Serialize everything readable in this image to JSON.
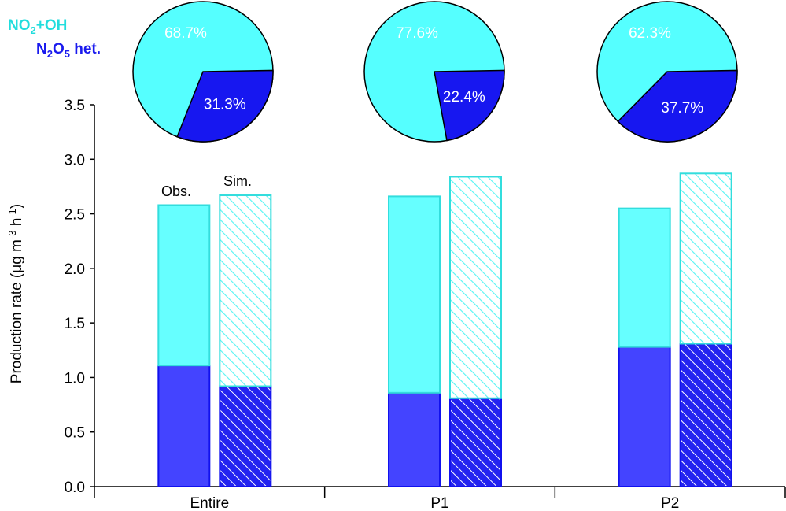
{
  "chart_data": {
    "type": "bar",
    "categories": [
      "Entire",
      "P1",
      "P2"
    ],
    "ylabel_main": "Production rate (μg m",
    "ylabel_sup1": "-3",
    "ylabel_mid": " h",
    "ylabel_sup2": "-1",
    "ylabel_end": ")",
    "ylim": [
      0,
      3.5
    ],
    "yticks": [
      "0.0",
      "0.5",
      "1.0",
      "1.5",
      "2.0",
      "2.5",
      "3.0",
      "3.5"
    ],
    "bar_labels": {
      "obs": "Obs.",
      "sim": "Sim."
    },
    "stacks": {
      "obs": {
        "n2o5_het": [
          1.11,
          0.86,
          1.28
        ],
        "no2_oh": [
          1.47,
          1.8,
          1.27
        ]
      },
      "sim": {
        "n2o5_het": [
          0.92,
          0.81,
          1.31
        ],
        "no2_oh": [
          1.75,
          2.03,
          1.56
        ]
      }
    },
    "pies": [
      {
        "category": "Entire",
        "slices": [
          {
            "name": "NO2+OH",
            "label": "68.7%",
            "value": 68.7
          },
          {
            "name": "N2O5 het.",
            "label": "31.3%",
            "value": 31.3
          }
        ]
      },
      {
        "category": "P1",
        "slices": [
          {
            "name": "NO2+OH",
            "label": "77.6%",
            "value": 77.6
          },
          {
            "name": "N2O5 het.",
            "label": "22.4%",
            "value": 22.4
          }
        ]
      },
      {
        "category": "P2",
        "slices": [
          {
            "name": "NO2+OH",
            "label": "62.3%",
            "value": 62.3
          },
          {
            "name": "N2O5 het.",
            "label": "37.7%",
            "value": 37.7
          }
        ]
      }
    ],
    "legend": {
      "no2_oh": {
        "main": "NO",
        "sub": "2",
        "rest": "+OH"
      },
      "n2o5_het": {
        "a": "N",
        "sub1": "2",
        "b": "O",
        "sub2": "5",
        "rest": " het."
      }
    },
    "colors": {
      "no2_oh_fill": "#66ffff",
      "no2_oh_stroke": "#33dddd",
      "n2o5_fill": "#4444ff",
      "n2o5_stroke": "#1111ee",
      "legend_no2_oh": "#22dddd",
      "legend_n2o5": "#1a1aee",
      "pie_cyan": "#55ffff",
      "pie_blue": "#1717f0"
    },
    "grid": false,
    "legend_position": "top-left"
  }
}
